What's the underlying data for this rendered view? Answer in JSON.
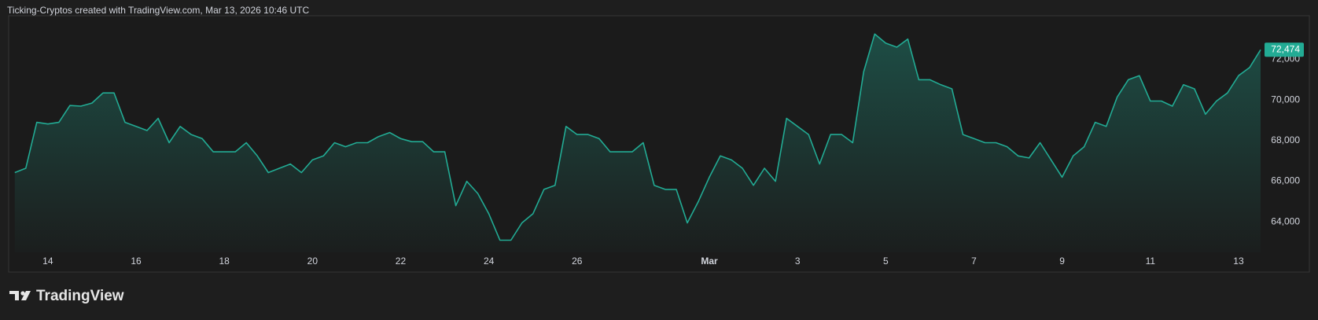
{
  "header": "Ticking-Cryptos created with TradingView.com, Mar 13, 2026 10:46 UTC",
  "logo": "TradingView",
  "chart_data": {
    "type": "area",
    "color": "#22ab94",
    "categories": [
      null,
      null,
      null,
      "14",
      null,
      null,
      null,
      null,
      null,
      null,
      null,
      "16",
      null,
      null,
      null,
      null,
      null,
      null,
      null,
      "18",
      null,
      null,
      null,
      null,
      null,
      null,
      null,
      "20",
      null,
      null,
      null,
      null,
      null,
      null,
      null,
      "22",
      null,
      null,
      null,
      null,
      null,
      null,
      null,
      "24",
      null,
      null,
      null,
      null,
      null,
      null,
      null,
      "26",
      null,
      null,
      null,
      null,
      null,
      null,
      null,
      null,
      null,
      null,
      null,
      "Mar",
      null,
      null,
      null,
      null,
      null,
      null,
      null,
      "3",
      null,
      null,
      null,
      null,
      null,
      null,
      null,
      "5",
      null,
      null,
      null,
      null,
      null,
      null,
      null,
      "7",
      null,
      null,
      null,
      null,
      null,
      null,
      null,
      "9",
      null,
      null,
      null,
      null,
      null,
      null,
      null,
      "11",
      null,
      null,
      null,
      null,
      null,
      null,
      null,
      "13",
      null,
      null
    ],
    "values": [
      66430,
      66640,
      68900,
      68820,
      68900,
      69730,
      69700,
      69850,
      70350,
      70350,
      68900,
      68700,
      68500,
      69100,
      67900,
      68700,
      68300,
      68100,
      67450,
      67450,
      67450,
      67900,
      67250,
      66430,
      66640,
      66850,
      66430,
      67050,
      67250,
      67900,
      67700,
      67900,
      67900,
      68200,
      68400,
      68100,
      67950,
      67950,
      67450,
      67450,
      64800,
      66000,
      65400,
      64400,
      63100,
      63100,
      63950,
      64400,
      65600,
      65800,
      68700,
      68300,
      68300,
      68100,
      67450,
      67450,
      67450,
      67900,
      65800,
      65600,
      65600,
      63950,
      65000,
      66200,
      67250,
      67050,
      66640,
      65800,
      66640,
      66000,
      69100,
      68700,
      68300,
      66850,
      68300,
      68300,
      67900,
      71400,
      73250,
      72800,
      72600,
      73000,
      71000,
      71000,
      70750,
      70550,
      68300,
      68100,
      67900,
      67900,
      67700,
      67250,
      67150,
      67900,
      67050,
      66200,
      67250,
      67700,
      68900,
      68700,
      70150,
      71000,
      71200,
      69950,
      69950,
      69700,
      70750,
      70550,
      69300,
      69950,
      70350,
      71200,
      71600,
      72474
    ],
    "last_value_label": "72,474",
    "ylim": [
      62500,
      74150
    ],
    "yticks": [
      {
        "value": 64000,
        "label": "64,000"
      },
      {
        "value": 66000,
        "label": "66,000"
      },
      {
        "value": 68000,
        "label": "68,000"
      },
      {
        "value": 70000,
        "label": "70,000"
      },
      {
        "value": 72000,
        "label": "72,000"
      }
    ]
  }
}
